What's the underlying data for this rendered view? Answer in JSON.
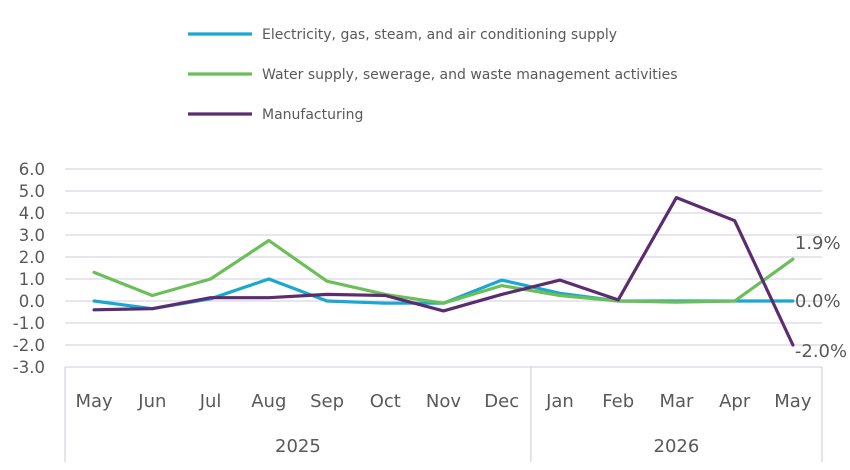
{
  "chart_data": {
    "type": "line",
    "title": "",
    "xlabel": "",
    "ylabel": "",
    "ylim": [
      -3.0,
      6.0
    ],
    "yticks": [
      "6.0",
      "5.0",
      "4.0",
      "3.0",
      "2.0",
      "1.0",
      "0.0",
      "-1.0",
      "-2.0",
      "-3.0"
    ],
    "grid": true,
    "legend_position": "top-left",
    "categories": [
      "May",
      "Jun",
      "Jul",
      "Aug",
      "Sep",
      "Oct",
      "Nov",
      "Dec",
      "Jan",
      "Feb",
      "Mar",
      "Apr",
      "May"
    ],
    "year_groups": [
      {
        "label": "2025",
        "start": 0,
        "end": 7
      },
      {
        "label": "2026",
        "start": 8,
        "end": 12
      }
    ],
    "series": [
      {
        "name": "Electricity, gas, steam, and air conditioning supply",
        "color": "#1BA8D0",
        "values": [
          0.0,
          -0.35,
          0.1,
          1.0,
          0.0,
          -0.1,
          -0.1,
          0.95,
          0.35,
          0.0,
          0.0,
          0.0,
          0.0
        ],
        "end_label": "0.0%"
      },
      {
        "name": "Water supply, sewerage, and waste management activities",
        "color": "#6BBF59",
        "values": [
          1.3,
          0.25,
          1.0,
          2.75,
          0.9,
          0.3,
          -0.1,
          0.7,
          0.25,
          0.0,
          -0.05,
          0.0,
          1.9
        ],
        "end_label": "1.9%"
      },
      {
        "name": "Manufacturing",
        "color": "#5B2C6F",
        "values": [
          -0.4,
          -0.35,
          0.15,
          0.15,
          0.3,
          0.25,
          -0.45,
          0.3,
          0.95,
          0.05,
          4.7,
          3.65,
          -2.0
        ],
        "end_label": "-2.0%"
      }
    ]
  }
}
